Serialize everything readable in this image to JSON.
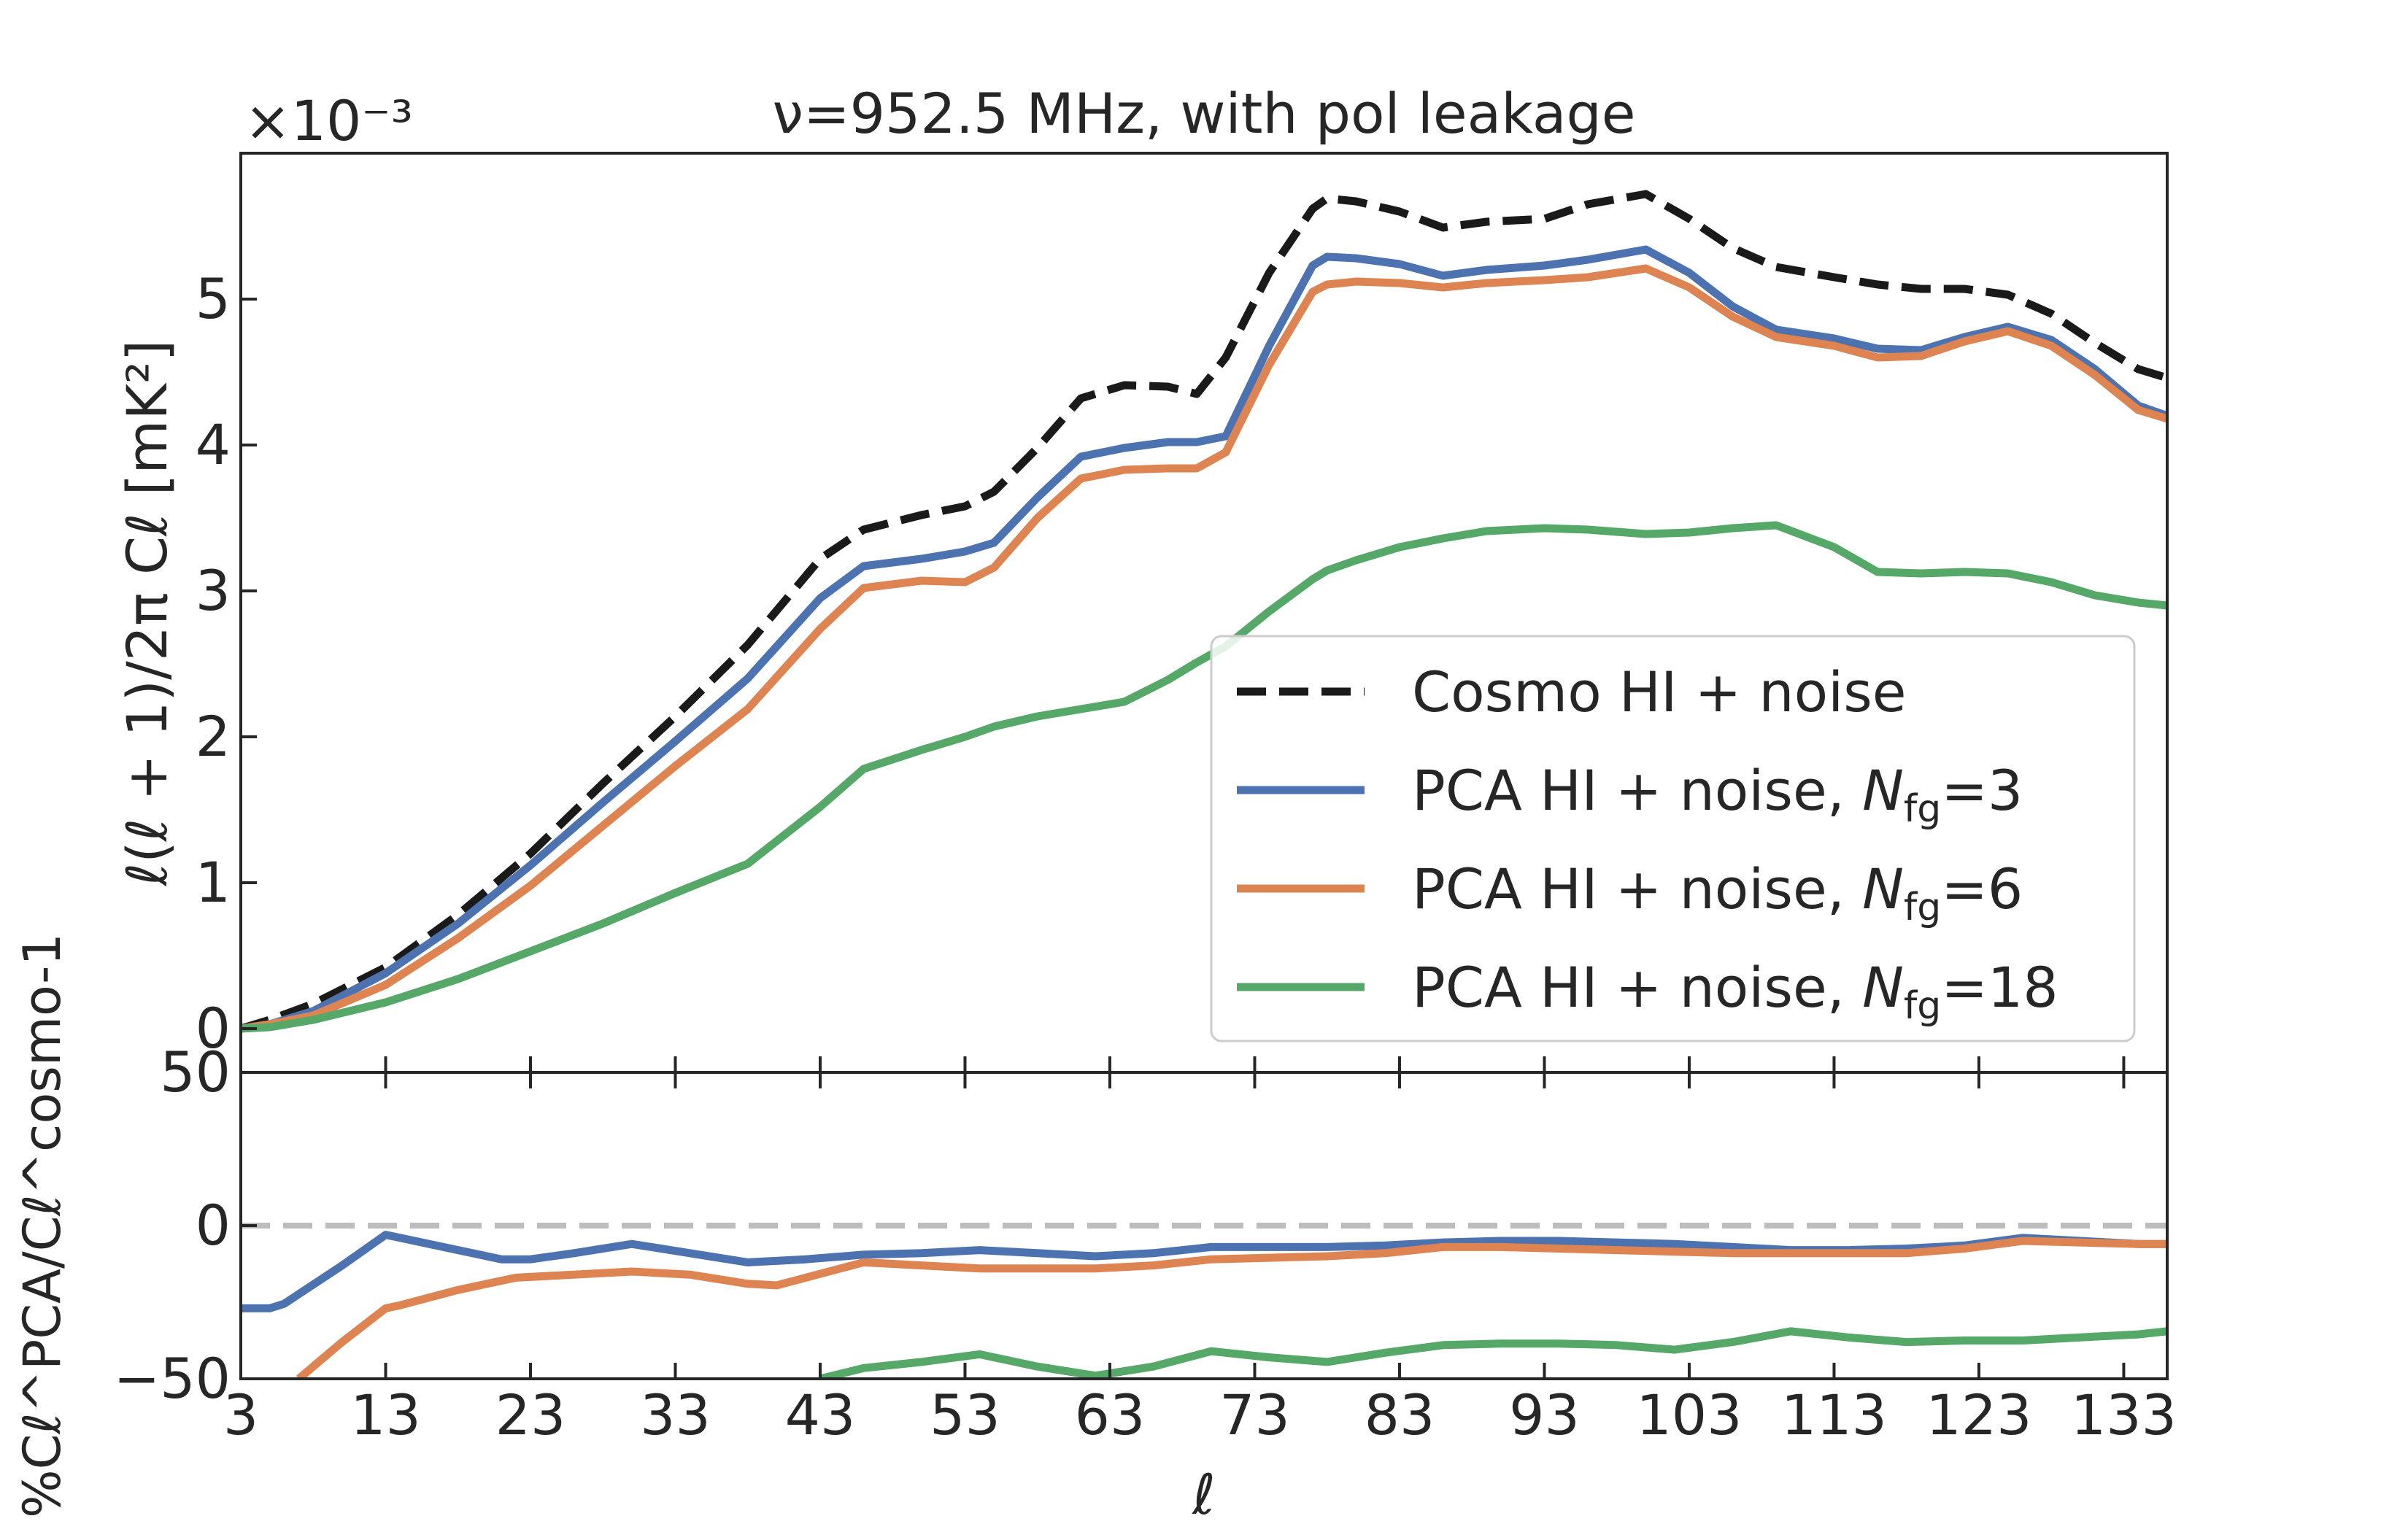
{
  "figure": {
    "title": "ν=952.5 MHz, with pol leakage",
    "offset_text": "×10⁻³",
    "colors": {
      "cosmo": "#1a1a1a",
      "nfg3": "#4c72b0",
      "nfg6": "#dd8452",
      "nfg18": "#55a868",
      "zero_line": "#bdbdbd",
      "text": "#262626"
    }
  },
  "chart_data": [
    {
      "type": "line",
      "panel": "top",
      "ylabel": "ℓ(ℓ + 1)/2π Cℓ [mK²]",
      "xlabel": "",
      "xlim": [
        3,
        136
      ],
      "ylim": [
        -0.3,
        6.0
      ],
      "y_scale_factor": 0.001,
      "yticks": [
        0,
        1,
        2,
        3,
        4,
        5
      ],
      "ytick_labels": [
        "0",
        "1",
        "2",
        "3",
        "4",
        "5"
      ],
      "legend_position": "lower-right",
      "series": [
        {
          "name": "Cosmo HI + noise",
          "style": "dashed",
          "x": [
            3,
            5,
            8,
            13,
            18,
            23,
            28,
            33,
            38,
            43,
            46,
            50,
            53,
            55,
            58,
            61,
            64,
            67,
            69,
            71,
            74,
            77,
            78,
            80,
            83,
            86,
            89,
            93,
            96,
            100,
            103,
            106,
            109,
            113,
            116,
            119,
            122,
            125,
            128,
            131,
            134,
            136
          ],
          "y": [
            0.0,
            0.06,
            0.17,
            0.42,
            0.78,
            1.2,
            1.68,
            2.14,
            2.63,
            3.22,
            3.42,
            3.52,
            3.58,
            3.68,
            3.98,
            4.32,
            4.41,
            4.4,
            4.35,
            4.6,
            5.18,
            5.62,
            5.69,
            5.67,
            5.6,
            5.49,
            5.53,
            5.55,
            5.65,
            5.72,
            5.55,
            5.35,
            5.22,
            5.15,
            5.1,
            5.07,
            5.07,
            5.03,
            4.9,
            4.7,
            4.52,
            4.46
          ]
        },
        {
          "name": "PCA HI + noise, N_fg=3",
          "style": "solid",
          "x": [
            3,
            5,
            8,
            13,
            18,
            23,
            28,
            33,
            38,
            43,
            46,
            50,
            53,
            55,
            58,
            61,
            64,
            67,
            69,
            71,
            74,
            77,
            78,
            80,
            83,
            86,
            89,
            93,
            96,
            100,
            103,
            106,
            109,
            113,
            116,
            119,
            122,
            125,
            128,
            131,
            134,
            136
          ],
          "y": [
            0.0,
            0.03,
            0.12,
            0.38,
            0.72,
            1.12,
            1.55,
            1.97,
            2.4,
            2.95,
            3.17,
            3.22,
            3.27,
            3.33,
            3.64,
            3.92,
            3.98,
            4.02,
            4.02,
            4.06,
            4.68,
            5.23,
            5.29,
            5.28,
            5.24,
            5.16,
            5.2,
            5.23,
            5.27,
            5.34,
            5.18,
            4.95,
            4.79,
            4.73,
            4.66,
            4.65,
            4.74,
            4.81,
            4.72,
            4.52,
            4.27,
            4.2
          ]
        },
        {
          "name": "PCA HI + noise, N_fg=6",
          "style": "solid",
          "x": [
            3,
            5,
            8,
            13,
            18,
            23,
            28,
            33,
            38,
            43,
            46,
            50,
            53,
            55,
            58,
            61,
            64,
            67,
            69,
            71,
            74,
            77,
            78,
            80,
            83,
            86,
            89,
            93,
            96,
            100,
            103,
            106,
            109,
            113,
            116,
            119,
            122,
            125,
            128,
            131,
            134,
            136
          ],
          "y": [
            0.0,
            0.03,
            0.09,
            0.3,
            0.62,
            0.98,
            1.39,
            1.8,
            2.19,
            2.74,
            3.02,
            3.07,
            3.06,
            3.16,
            3.5,
            3.77,
            3.83,
            3.84,
            3.84,
            3.95,
            4.55,
            5.05,
            5.1,
            5.12,
            5.11,
            5.08,
            5.11,
            5.13,
            5.15,
            5.21,
            5.08,
            4.88,
            4.74,
            4.68,
            4.6,
            4.61,
            4.71,
            4.78,
            4.68,
            4.48,
            4.24,
            4.18
          ]
        },
        {
          "name": "PCA HI + noise, N_fg=18",
          "style": "solid",
          "x": [
            3,
            5,
            8,
            13,
            18,
            23,
            28,
            33,
            38,
            43,
            46,
            50,
            53,
            55,
            58,
            61,
            64,
            67,
            69,
            71,
            74,
            77,
            78,
            80,
            83,
            86,
            89,
            93,
            96,
            100,
            103,
            106,
            109,
            113,
            116,
            119,
            122,
            125,
            128,
            131,
            134,
            136
          ],
          "y": [
            0.0,
            0.01,
            0.06,
            0.18,
            0.34,
            0.53,
            0.72,
            0.93,
            1.13,
            1.52,
            1.78,
            1.91,
            2.0,
            2.07,
            2.14,
            2.19,
            2.24,
            2.39,
            2.51,
            2.62,
            2.86,
            3.08,
            3.14,
            3.21,
            3.3,
            3.36,
            3.41,
            3.43,
            3.42,
            3.39,
            3.4,
            3.43,
            3.45,
            3.3,
            3.13,
            3.12,
            3.13,
            3.12,
            3.06,
            2.97,
            2.92,
            2.9
          ]
        }
      ]
    },
    {
      "type": "line",
      "panel": "bottom",
      "ylabel": "%Cℓ^PCA/Cℓ^cosmo-1",
      "xlabel": "ℓ",
      "xlim": [
        3,
        136
      ],
      "ylim": [
        -50,
        50
      ],
      "yticks": [
        -50,
        0,
        50
      ],
      "ytick_labels": [
        "−50",
        "0",
        "50"
      ],
      "xticks": [
        3,
        13,
        23,
        33,
        43,
        53,
        63,
        73,
        83,
        93,
        103,
        113,
        123,
        133
      ],
      "xtick_labels": [
        "3",
        "13",
        "23",
        "33",
        "43",
        "53",
        "63",
        "73",
        "83",
        "93",
        "103",
        "113",
        "123",
        "133"
      ],
      "reference_line": 0,
      "series": [
        {
          "name": "N_fg=3",
          "x": [
            3,
            5,
            6,
            10,
            13,
            14,
            18,
            21,
            23,
            26,
            30,
            34,
            38,
            42,
            46,
            50,
            54,
            58,
            62,
            66,
            70,
            74,
            78,
            82,
            86,
            90,
            94,
            98,
            102,
            106,
            110,
            114,
            118,
            122,
            126,
            130,
            134,
            136
          ],
          "y": [
            -27,
            -27,
            -25.5,
            -13,
            -3,
            -4,
            -8,
            -11,
            -11,
            -9,
            -6,
            -9,
            -12,
            -11,
            -9.5,
            -9,
            -8,
            -9,
            -10,
            -9,
            -7,
            -7,
            -7,
            -6.5,
            -5.5,
            -5,
            -5,
            -5.5,
            -6,
            -7,
            -8,
            -8,
            -7.5,
            -6.5,
            -4,
            -5,
            -6,
            -6
          ]
        },
        {
          "name": "N_fg=6",
          "x": [
            7,
            10,
            13,
            14,
            18,
            22,
            26,
            30,
            34,
            38,
            40,
            46,
            50,
            54,
            58,
            62,
            66,
            70,
            74,
            78,
            82,
            86,
            90,
            94,
            98,
            102,
            106,
            110,
            114,
            118,
            122,
            126,
            130,
            134,
            136
          ],
          "y": [
            -50,
            -38,
            -27,
            -26,
            -21,
            -17,
            -16,
            -15,
            -16,
            -19,
            -19.5,
            -12,
            -13,
            -14,
            -14,
            -14,
            -13,
            -11,
            -10.5,
            -10,
            -9,
            -7,
            -7,
            -7.5,
            -8,
            -8.5,
            -9,
            -9,
            -9,
            -9,
            -7.5,
            -5,
            -5.5,
            -6,
            -6
          ]
        },
        {
          "name": "N_fg=18",
          "x": [
            43,
            46,
            50,
            54,
            58,
            62,
            66,
            70,
            74,
            78,
            82,
            86,
            90,
            94,
            98,
            102,
            106,
            110,
            114,
            118,
            122,
            126,
            130,
            134,
            136
          ],
          "y": [
            -50,
            -46.5,
            -44.5,
            -42,
            -46,
            -49,
            -46,
            -41,
            -43,
            -44.5,
            -41.5,
            -39,
            -38.5,
            -38.5,
            -39,
            -40.5,
            -38,
            -34.5,
            -36.5,
            -38,
            -37.5,
            -37.5,
            -36.5,
            -35.5,
            -34.5
          ]
        }
      ]
    }
  ]
}
